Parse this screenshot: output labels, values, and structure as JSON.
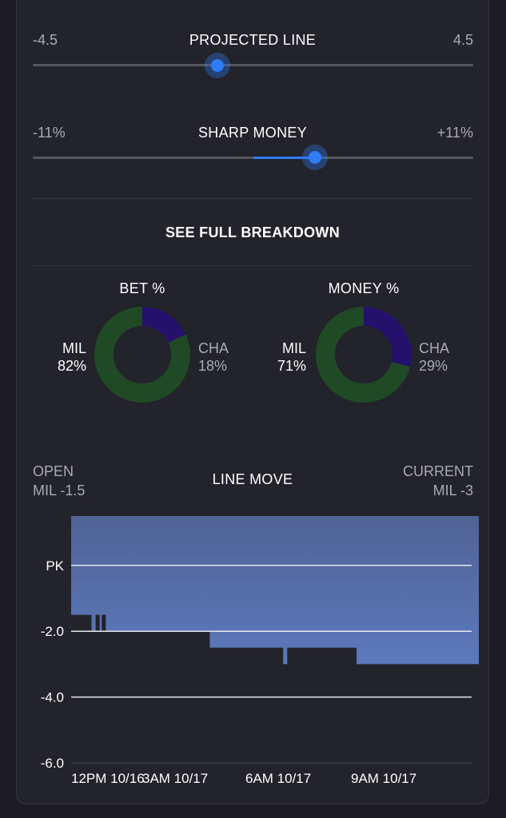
{
  "projected_line": {
    "title": "PROJECTED LINE",
    "min_label": "-4.5",
    "max_label": "4.5",
    "value_fraction": 0.42
  },
  "sharp_money": {
    "title": "SHARP MONEY",
    "min_label": "-11%",
    "max_label": "+11%",
    "value_fraction": 0.64
  },
  "breakdown_label": "SEE FULL BREAKDOWN",
  "bet_pct": {
    "title": "BET %",
    "left_team": "MIL",
    "left_value": "82%",
    "right_team": "CHA",
    "right_value": "18%",
    "left_fraction": 0.82
  },
  "money_pct": {
    "title": "MONEY %",
    "left_team": "MIL",
    "left_value": "71%",
    "right_team": "CHA",
    "right_value": "29%",
    "left_fraction": 0.71
  },
  "line_move": {
    "title": "LINE MOVE",
    "open_label": "OPEN",
    "open_value": "MIL -1.5",
    "current_label": "CURRENT",
    "current_value": "MIL -3"
  },
  "colors": {
    "accent": "#2f7cf6",
    "green": "#1f4a25",
    "purple": "#24116b",
    "chart_fill": "#5a72b0"
  },
  "chart_data": {
    "type": "area",
    "y_tick_labels": [
      "PK",
      "-2.0",
      "-4.0",
      "-6.0"
    ],
    "y_ticks": [
      0,
      -2,
      -4,
      -6
    ],
    "x_tick_labels": [
      "12PM 10/16",
      "3AM 10/17",
      "6AM 10/17",
      "9AM 10/17"
    ],
    "ylim": [
      -6,
      1.5
    ],
    "series": [
      {
        "values": [
          [
            0,
            -1.5
          ],
          [
            0.05,
            -1.5
          ],
          [
            0.05,
            -2
          ],
          [
            0.06,
            -2
          ],
          [
            0.06,
            -1.5
          ],
          [
            0.07,
            -1.5
          ],
          [
            0.07,
            -2
          ],
          [
            0.075,
            -2
          ],
          [
            0.075,
            -1.5
          ],
          [
            0.085,
            -1.5
          ],
          [
            0.085,
            -2
          ],
          [
            0.34,
            -2
          ],
          [
            0.34,
            -2.5
          ],
          [
            0.52,
            -2.5
          ],
          [
            0.52,
            -3
          ],
          [
            0.53,
            -3
          ],
          [
            0.53,
            -2.5
          ],
          [
            0.7,
            -2.5
          ],
          [
            0.7,
            -3
          ],
          [
            1.0,
            -3
          ]
        ]
      }
    ]
  }
}
